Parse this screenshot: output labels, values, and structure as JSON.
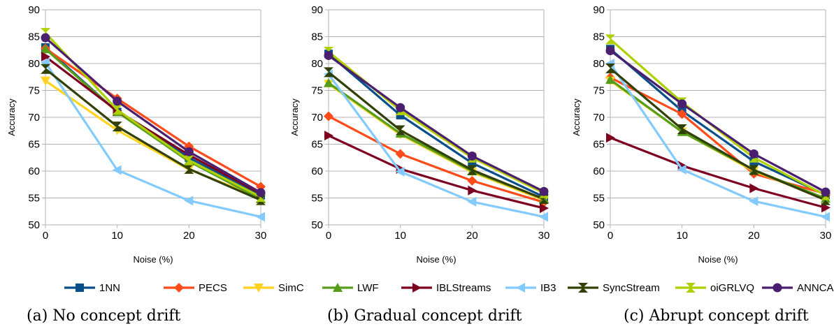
{
  "captions": {
    "a": "(a) No concept drift",
    "b": "(b) Gradual concept drift",
    "c": "(c) Abrupt concept drift"
  },
  "legend": [
    {
      "name": "1NN",
      "color": "#0b4f8a",
      "marker": "square"
    },
    {
      "name": "PECS",
      "color": "#ff4b1a",
      "marker": "diamond"
    },
    {
      "name": "SimC",
      "color": "#ffd320",
      "marker": "triangle-down"
    },
    {
      "name": "LWF",
      "color": "#579d1c",
      "marker": "triangle-up"
    },
    {
      "name": "IBLStreams",
      "color": "#7e0021",
      "marker": "triangle-right"
    },
    {
      "name": "IB3",
      "color": "#83caff",
      "marker": "triangle-left"
    },
    {
      "name": "SyncStream",
      "color": "#314004",
      "marker": "bowtie"
    },
    {
      "name": "oiGRLVQ",
      "color": "#aecf00",
      "marker": "hourglass"
    },
    {
      "name": "ANNCAD",
      "color": "#4b1f6f",
      "marker": "circle"
    }
  ],
  "chart_data": [
    {
      "type": "line",
      "xlabel": "Noise (%)",
      "ylabel": "Accuracy",
      "x": [
        0,
        10,
        20,
        30
      ],
      "xticks": [
        "0",
        "10",
        "20",
        "30"
      ],
      "yticks": [
        "50",
        "55",
        "60",
        "65",
        "70",
        "75",
        "80",
        "85",
        "90"
      ],
      "ylim": [
        50,
        90
      ],
      "grid": "horizontal",
      "series": [
        {
          "name": "1NN",
          "values": [
            83.0,
            71.0,
            62.5,
            55.5
          ]
        },
        {
          "name": "PECS",
          "values": [
            82.8,
            73.5,
            64.6,
            57.1
          ]
        },
        {
          "name": "SimC",
          "values": [
            76.8,
            67.6,
            60.3,
            55.0
          ]
        },
        {
          "name": "LWF",
          "values": [
            82.7,
            71.0,
            61.8,
            54.8
          ]
        },
        {
          "name": "IBLStreams",
          "values": [
            81.3,
            71.2,
            63.0,
            55.8
          ]
        },
        {
          "name": "IB3",
          "values": [
            80.2,
            60.2,
            54.5,
            51.5
          ]
        },
        {
          "name": "SyncStream",
          "values": [
            79.0,
            68.3,
            60.4,
            54.6
          ]
        },
        {
          "name": "oiGRLVQ",
          "values": [
            85.7,
            71.4,
            62.0,
            55.2
          ]
        },
        {
          "name": "ANNCAD",
          "values": [
            84.8,
            73.0,
            63.6,
            56.0
          ]
        }
      ]
    },
    {
      "type": "line",
      "xlabel": "Noise (%)",
      "ylabel": "Accuracy",
      "x": [
        0,
        10,
        20,
        30
      ],
      "xticks": [
        "0",
        "10",
        "20",
        "30"
      ],
      "yticks": [
        "50",
        "55",
        "60",
        "65",
        "70",
        "75",
        "80",
        "85",
        "90"
      ],
      "ylim": [
        50,
        90
      ],
      "grid": "horizontal",
      "series": [
        {
          "name": "1NN",
          "values": [
            81.8,
            70.4,
            61.5,
            55.2
          ]
        },
        {
          "name": "PECS",
          "values": [
            70.2,
            63.2,
            58.2,
            54.2
          ]
        },
        {
          "name": "SimC",
          "values": [
            76.2,
            66.8,
            59.8,
            54.6
          ]
        },
        {
          "name": "LWF",
          "values": [
            76.4,
            67.0,
            60.0,
            54.8
          ]
        },
        {
          "name": "IBLStreams",
          "values": [
            66.6,
            60.4,
            56.4,
            53.1
          ]
        },
        {
          "name": "IB3",
          "values": [
            78.0,
            59.9,
            54.3,
            51.5
          ]
        },
        {
          "name": "SyncStream",
          "values": [
            78.4,
            67.6,
            60.2,
            54.8
          ]
        },
        {
          "name": "oiGRLVQ",
          "values": [
            82.2,
            71.3,
            62.5,
            55.9
          ]
        },
        {
          "name": "ANNCAD",
          "values": [
            81.5,
            71.8,
            62.8,
            56.2
          ]
        }
      ]
    },
    {
      "type": "line",
      "xlabel": "Noise (%)",
      "ylabel": "Accuracy",
      "x": [
        0,
        10,
        20,
        30
      ],
      "xticks": [
        "0",
        "10",
        "20",
        "30"
      ],
      "yticks": [
        "50",
        "55",
        "60",
        "65",
        "70",
        "75",
        "80",
        "85",
        "90"
      ],
      "ylim": [
        50,
        90
      ],
      "grid": "horizontal",
      "series": [
        {
          "name": "1NN",
          "values": [
            82.7,
            71.2,
            61.8,
            55.6
          ]
        },
        {
          "name": "PECS",
          "values": [
            77.4,
            70.6,
            59.5,
            55.8
          ]
        },
        {
          "name": "SimC",
          "values": [
            76.8,
            67.3,
            60.0,
            54.8
          ]
        },
        {
          "name": "LWF",
          "values": [
            77.0,
            67.3,
            60.2,
            54.9
          ]
        },
        {
          "name": "IBLStreams",
          "values": [
            66.2,
            61.0,
            56.8,
            53.2
          ]
        },
        {
          "name": "IB3",
          "values": [
            80.0,
            60.3,
            54.4,
            51.5
          ]
        },
        {
          "name": "SyncStream",
          "values": [
            79.1,
            67.8,
            60.2,
            54.6
          ]
        },
        {
          "name": "oiGRLVQ",
          "values": [
            84.5,
            72.8,
            62.5,
            55.5
          ]
        },
        {
          "name": "ANNCAD",
          "values": [
            82.4,
            72.5,
            63.2,
            56.1
          ]
        }
      ]
    }
  ]
}
